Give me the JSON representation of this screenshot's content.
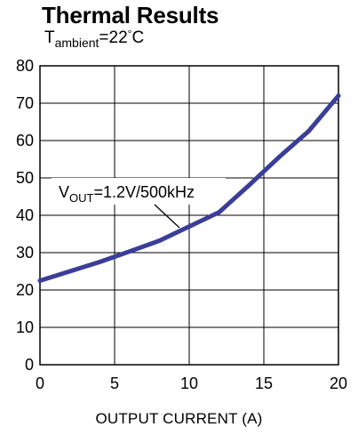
{
  "chart_data": {
    "type": "line",
    "title": "Thermal Results",
    "subtitle": {
      "prefix": "T",
      "subscript": "ambient",
      "suffix": "=22",
      "degree": "°",
      "unit": "C"
    },
    "xlabel": "OUTPUT CURRENT (A)",
    "ylabel": "",
    "xlim": [
      0,
      20
    ],
    "ylim": [
      0,
      80
    ],
    "xticks": [
      "0",
      "5",
      "10",
      "15",
      "20"
    ],
    "yticks": [
      "0",
      "10",
      "20",
      "30",
      "40",
      "50",
      "60",
      "70",
      "80"
    ],
    "grid": true,
    "series": [
      {
        "x": [
          0,
          2,
          4,
          6,
          8,
          10,
          12,
          14,
          16,
          18,
          20
        ],
        "y": [
          22.5,
          25.0,
          27.5,
          30.3,
          33.2,
          37.0,
          40.8,
          48.0,
          55.5,
          62.5,
          72.0
        ],
        "color": "#3a3e98"
      }
    ],
    "annotation": {
      "prefix": "V",
      "subscript": "OUT",
      "suffix": "=1.2V/500kHz"
    }
  }
}
